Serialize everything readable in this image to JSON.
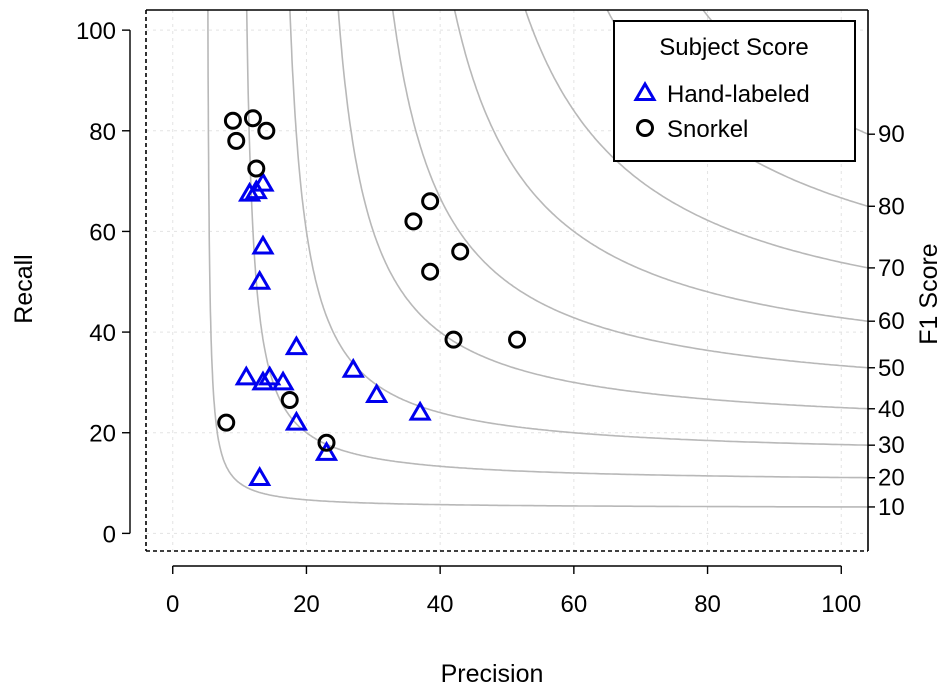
{
  "chart_data": {
    "type": "scatter",
    "title": "",
    "xlabel": "Precision",
    "ylabel": "Recall",
    "y2label": "F1 Score",
    "xlim": [
      -4,
      104
    ],
    "ylim": [
      -3.5,
      104
    ],
    "x_ticks": [
      "0",
      "20",
      "40",
      "60",
      "80",
      "100"
    ],
    "y_ticks": [
      "0",
      "20",
      "40",
      "60",
      "80",
      "100"
    ],
    "x_tick_values": [
      0,
      20,
      40,
      60,
      80,
      100
    ],
    "y_tick_values": [
      0,
      20,
      40,
      60,
      80,
      100
    ],
    "grid": true,
    "f1_contours": [
      {
        "label": "10",
        "value": 10
      },
      {
        "label": "20",
        "value": 20
      },
      {
        "label": "30",
        "value": 30
      },
      {
        "label": "40",
        "value": 40
      },
      {
        "label": "50",
        "value": 50
      },
      {
        "label": "60",
        "value": 60
      },
      {
        "label": "70",
        "value": 70
      },
      {
        "label": "80",
        "value": 80
      },
      {
        "label": "90",
        "value": 90
      }
    ],
    "legend": {
      "title": "Subject Score",
      "position": "top-right",
      "entries": [
        {
          "label": "Hand-labeled",
          "marker": "triangle",
          "color": "#0000ee"
        },
        {
          "label": "Snorkel",
          "marker": "circle",
          "color": "#000000"
        }
      ]
    },
    "series": [
      {
        "name": "Hand-labeled",
        "marker": "triangle",
        "color": "#0000ee",
        "points": [
          {
            "x": 11.5,
            "y": 67.5
          },
          {
            "x": 12.5,
            "y": 68
          },
          {
            "x": 13.5,
            "y": 69.5
          },
          {
            "x": 13.5,
            "y": 57
          },
          {
            "x": 13,
            "y": 50
          },
          {
            "x": 18.5,
            "y": 37
          },
          {
            "x": 11,
            "y": 31
          },
          {
            "x": 13.5,
            "y": 30
          },
          {
            "x": 14.5,
            "y": 31
          },
          {
            "x": 16.5,
            "y": 30
          },
          {
            "x": 18.5,
            "y": 22
          },
          {
            "x": 27,
            "y": 32.5
          },
          {
            "x": 30.5,
            "y": 27.5
          },
          {
            "x": 37,
            "y": 24
          },
          {
            "x": 23,
            "y": 16
          },
          {
            "x": 13,
            "y": 11
          }
        ]
      },
      {
        "name": "Snorkel",
        "marker": "circle",
        "color": "#000000",
        "points": [
          {
            "x": 9,
            "y": 82
          },
          {
            "x": 12,
            "y": 82.5
          },
          {
            "x": 9.5,
            "y": 78
          },
          {
            "x": 14,
            "y": 80
          },
          {
            "x": 12.5,
            "y": 72.5
          },
          {
            "x": 36,
            "y": 62
          },
          {
            "x": 38.5,
            "y": 66
          },
          {
            "x": 43,
            "y": 56
          },
          {
            "x": 38.5,
            "y": 52
          },
          {
            "x": 42,
            "y": 38.5
          },
          {
            "x": 51.5,
            "y": 38.5
          },
          {
            "x": 17.5,
            "y": 26.5
          },
          {
            "x": 8,
            "y": 22
          },
          {
            "x": 23,
            "y": 18
          }
        ]
      }
    ]
  }
}
